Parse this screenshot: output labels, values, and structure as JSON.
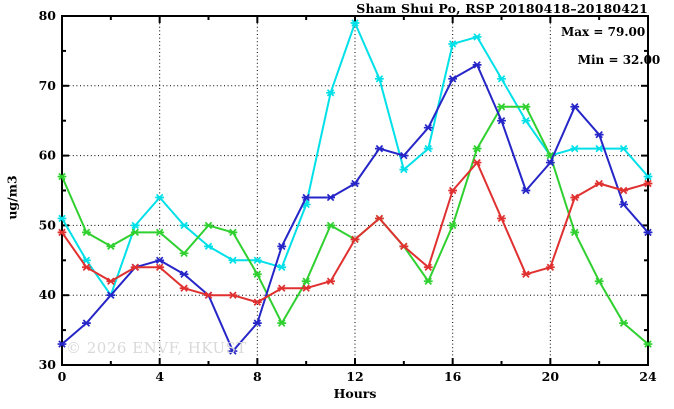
{
  "title": "Sham Shui Po, RSP 20180418–20180421",
  "annotation": {
    "max_label": "Max = 79.00",
    "min_label": "Min = 32.00"
  },
  "watermark": "© 2026 ENVF, HKUST",
  "chart_data": {
    "type": "line",
    "title": "Sham Shui Po, RSP 20180418–20180421",
    "xlabel": "Hours",
    "ylabel": "ug/m3",
    "xlim": [
      0,
      24
    ],
    "ylim": [
      30,
      80
    ],
    "x_major_ticks": [
      0,
      4,
      8,
      12,
      16,
      20,
      24
    ],
    "x_minor_ticks": [
      2,
      6,
      10,
      14,
      18,
      22
    ],
    "y_major_ticks": [
      30,
      40,
      50,
      60,
      70,
      80
    ],
    "y_minor_ticks": [
      35,
      45,
      55,
      65,
      75
    ],
    "grid": "dotted at major ticks, full frame box, no legend",
    "legend": "none",
    "max_value": 79.0,
    "min_value": 32.0,
    "x": [
      0,
      1,
      2,
      3,
      4,
      5,
      6,
      7,
      8,
      9,
      10,
      11,
      12,
      13,
      14,
      15,
      16,
      17,
      18,
      19,
      20,
      21,
      22,
      23,
      24
    ],
    "series": [
      {
        "name": "cyan-series",
        "color": "#00e0e8",
        "values": [
          51,
          45,
          40,
          50,
          54,
          50,
          47,
          45,
          45,
          44,
          53,
          69,
          79,
          71,
          58,
          61,
          76,
          77,
          71,
          65,
          60,
          61,
          61,
          61,
          57
        ]
      },
      {
        "name": "green-series",
        "color": "#2fd02f",
        "values": [
          57,
          49,
          47,
          49,
          49,
          46,
          50,
          49,
          43,
          36,
          42,
          50,
          48,
          51,
          47,
          42,
          50,
          61,
          67,
          67,
          60,
          49,
          42,
          36,
          33
        ]
      },
      {
        "name": "blue-series",
        "color": "#2626c8",
        "values": [
          33,
          36,
          40,
          44,
          45,
          43,
          40,
          32,
          36,
          47,
          54,
          54,
          56,
          61,
          60,
          64,
          71,
          73,
          65,
          55,
          59,
          67,
          63,
          53,
          49
        ]
      },
      {
        "name": "red-series",
        "color": "#e03030",
        "values": [
          49,
          44,
          42,
          44,
          44,
          41,
          40,
          40,
          39,
          41,
          41,
          42,
          48,
          51,
          47,
          44,
          55,
          59,
          51,
          43,
          44,
          54,
          56,
          55,
          56
        ]
      }
    ]
  }
}
